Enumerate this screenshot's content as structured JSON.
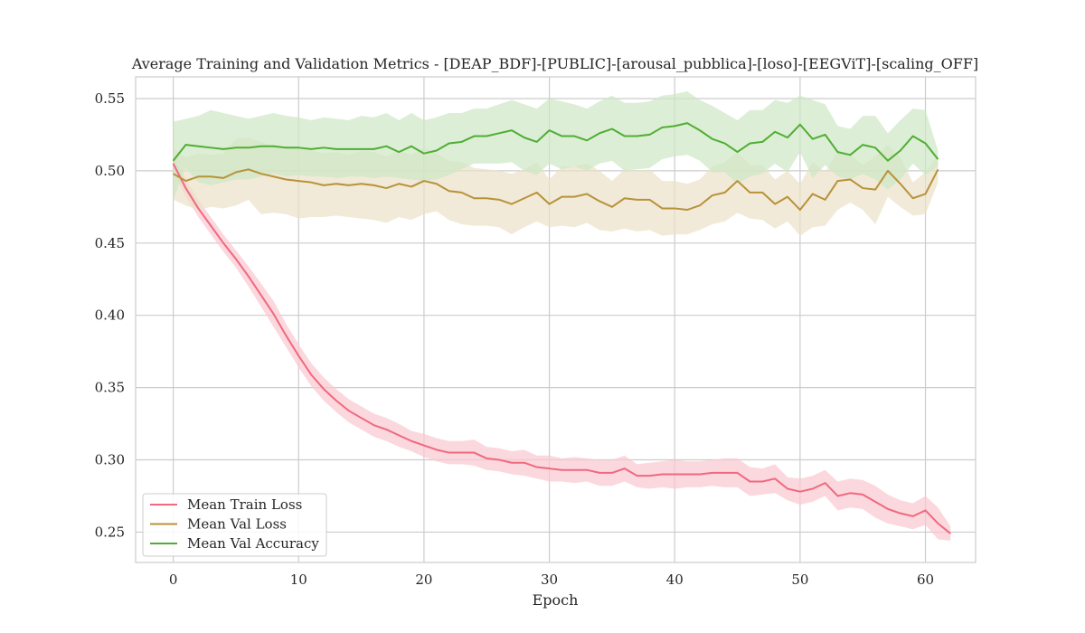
{
  "chart_data": {
    "type": "line",
    "title": "Average Training and Validation Metrics - [DEAP_BDF]-[PUBLIC]-[arousal_pubblica]-[loso]-[EEGViT]-[scaling_OFF]",
    "xlabel": "Epoch",
    "ylabel": "",
    "xlim": [
      -3,
      64
    ],
    "ylim": [
      0.229,
      0.565
    ],
    "xticks": [
      0,
      10,
      20,
      30,
      40,
      50,
      60
    ],
    "yticks": [
      0.25,
      0.3,
      0.35,
      0.4,
      0.45,
      0.5,
      0.55
    ],
    "xtick_labels": [
      "0",
      "10",
      "20",
      "30",
      "40",
      "50",
      "60"
    ],
    "ytick_labels": [
      "0.25",
      "0.30",
      "0.35",
      "0.40",
      "0.45",
      "0.50",
      "0.55"
    ],
    "grid": true,
    "legend_position": "lower-left",
    "series": [
      {
        "name": "Mean Train Loss",
        "color": "#f0697f",
        "band_color": "#f9c8d0",
        "values": [
          0.505,
          0.488,
          0.474,
          0.462,
          0.45,
          0.439,
          0.427,
          0.414,
          0.401,
          0.386,
          0.372,
          0.359,
          0.349,
          0.341,
          0.334,
          0.329,
          0.324,
          0.321,
          0.317,
          0.313,
          0.31,
          0.307,
          0.305,
          0.305,
          0.305,
          0.301,
          0.3,
          0.298,
          0.298,
          0.295,
          0.294,
          0.293,
          0.293,
          0.293,
          0.291,
          0.291,
          0.294,
          0.289,
          0.289,
          0.29,
          0.29,
          0.29,
          0.29,
          0.291,
          0.291,
          0.291,
          0.285,
          0.285,
          0.287,
          0.28,
          0.278,
          0.28,
          0.284,
          0.275,
          0.277,
          0.276,
          0.271,
          0.266,
          0.263,
          0.261,
          0.265,
          0.256,
          0.249
        ],
        "lower": [
          0.5,
          0.482,
          0.468,
          0.456,
          0.444,
          0.433,
          0.42,
          0.406,
          0.392,
          0.378,
          0.364,
          0.351,
          0.341,
          0.333,
          0.326,
          0.321,
          0.316,
          0.313,
          0.309,
          0.306,
          0.302,
          0.299,
          0.297,
          0.297,
          0.296,
          0.293,
          0.292,
          0.29,
          0.289,
          0.287,
          0.285,
          0.285,
          0.284,
          0.285,
          0.282,
          0.282,
          0.285,
          0.281,
          0.28,
          0.281,
          0.28,
          0.281,
          0.281,
          0.282,
          0.281,
          0.281,
          0.275,
          0.276,
          0.277,
          0.272,
          0.269,
          0.271,
          0.275,
          0.265,
          0.267,
          0.266,
          0.26,
          0.256,
          0.254,
          0.252,
          0.255,
          0.245,
          0.244
        ],
        "upper": [
          0.51,
          0.494,
          0.48,
          0.468,
          0.456,
          0.445,
          0.434,
          0.422,
          0.41,
          0.394,
          0.38,
          0.367,
          0.357,
          0.349,
          0.342,
          0.337,
          0.332,
          0.329,
          0.325,
          0.32,
          0.318,
          0.315,
          0.313,
          0.313,
          0.314,
          0.309,
          0.308,
          0.306,
          0.307,
          0.303,
          0.303,
          0.301,
          0.302,
          0.301,
          0.3,
          0.3,
          0.303,
          0.297,
          0.298,
          0.299,
          0.3,
          0.299,
          0.299,
          0.3,
          0.301,
          0.301,
          0.295,
          0.294,
          0.297,
          0.288,
          0.287,
          0.289,
          0.293,
          0.285,
          0.287,
          0.286,
          0.282,
          0.276,
          0.272,
          0.27,
          0.275,
          0.267,
          0.254
        ]
      },
      {
        "name": "Mean Val Loss",
        "color": "#b8923a",
        "band_color": "#ebe1c7",
        "values": [
          0.498,
          0.493,
          0.496,
          0.496,
          0.495,
          0.499,
          0.501,
          0.498,
          0.496,
          0.494,
          0.493,
          0.492,
          0.49,
          0.491,
          0.49,
          0.491,
          0.49,
          0.488,
          0.491,
          0.489,
          0.493,
          0.491,
          0.486,
          0.485,
          0.481,
          0.481,
          0.48,
          0.477,
          0.481,
          0.485,
          0.477,
          0.482,
          0.482,
          0.484,
          0.479,
          0.475,
          0.481,
          0.48,
          0.48,
          0.474,
          0.474,
          0.473,
          0.476,
          0.483,
          0.485,
          0.493,
          0.485,
          0.485,
          0.477,
          0.482,
          0.473,
          0.484,
          0.48,
          0.493,
          0.494,
          0.488,
          0.487,
          0.5,
          0.491,
          0.481,
          0.484,
          0.501
        ],
        "lower": [
          0.48,
          0.476,
          0.473,
          0.475,
          0.474,
          0.476,
          0.48,
          0.47,
          0.471,
          0.47,
          0.467,
          0.468,
          0.468,
          0.469,
          0.468,
          0.467,
          0.466,
          0.464,
          0.468,
          0.466,
          0.47,
          0.472,
          0.466,
          0.463,
          0.462,
          0.462,
          0.461,
          0.456,
          0.461,
          0.465,
          0.461,
          0.462,
          0.461,
          0.464,
          0.459,
          0.458,
          0.46,
          0.458,
          0.459,
          0.455,
          0.456,
          0.456,
          0.459,
          0.463,
          0.465,
          0.471,
          0.467,
          0.466,
          0.46,
          0.465,
          0.455,
          0.461,
          0.462,
          0.473,
          0.478,
          0.473,
          0.463,
          0.482,
          0.475,
          0.469,
          0.47,
          0.492
        ],
        "upper": [
          0.516,
          0.509,
          0.512,
          0.511,
          0.512,
          0.522,
          0.523,
          0.52,
          0.517,
          0.516,
          0.515,
          0.514,
          0.512,
          0.513,
          0.511,
          0.514,
          0.513,
          0.51,
          0.514,
          0.511,
          0.516,
          0.512,
          0.507,
          0.506,
          0.502,
          0.501,
          0.5,
          0.498,
          0.501,
          0.506,
          0.494,
          0.503,
          0.503,
          0.505,
          0.5,
          0.493,
          0.501,
          0.5,
          0.501,
          0.493,
          0.493,
          0.491,
          0.494,
          0.503,
          0.506,
          0.513,
          0.504,
          0.504,
          0.494,
          0.5,
          0.491,
          0.506,
          0.499,
          0.514,
          0.511,
          0.504,
          0.51,
          0.518,
          0.509,
          0.492,
          0.499,
          0.511
        ]
      },
      {
        "name": "Mean Val Accuracy",
        "color": "#4fae32",
        "band_color": "#cde7c4",
        "values": [
          0.507,
          0.518,
          0.517,
          0.516,
          0.515,
          0.516,
          0.516,
          0.517,
          0.517,
          0.516,
          0.516,
          0.515,
          0.516,
          0.515,
          0.515,
          0.515,
          0.515,
          0.517,
          0.513,
          0.517,
          0.512,
          0.514,
          0.519,
          0.52,
          0.524,
          0.524,
          0.526,
          0.528,
          0.523,
          0.52,
          0.528,
          0.524,
          0.524,
          0.521,
          0.526,
          0.529,
          0.524,
          0.524,
          0.525,
          0.53,
          0.531,
          0.533,
          0.528,
          0.522,
          0.519,
          0.513,
          0.519,
          0.52,
          0.527,
          0.523,
          0.532,
          0.522,
          0.525,
          0.513,
          0.511,
          0.518,
          0.516,
          0.507,
          0.514,
          0.524,
          0.519,
          0.508
        ],
        "lower": [
          0.48,
          0.502,
          0.492,
          0.49,
          0.492,
          0.494,
          0.494,
          0.496,
          0.498,
          0.496,
          0.497,
          0.496,
          0.496,
          0.495,
          0.496,
          0.496,
          0.495,
          0.496,
          0.495,
          0.494,
          0.493,
          0.494,
          0.497,
          0.501,
          0.505,
          0.505,
          0.505,
          0.506,
          0.5,
          0.497,
          0.505,
          0.501,
          0.503,
          0.5,
          0.505,
          0.507,
          0.5,
          0.501,
          0.502,
          0.508,
          0.51,
          0.511,
          0.507,
          0.499,
          0.499,
          0.491,
          0.496,
          0.498,
          0.505,
          0.499,
          0.513,
          0.495,
          0.504,
          0.496,
          0.494,
          0.498,
          0.494,
          0.487,
          0.494,
          0.505,
          0.497,
          0.503
        ],
        "upper": [
          0.534,
          0.536,
          0.538,
          0.542,
          0.54,
          0.538,
          0.536,
          0.538,
          0.54,
          0.538,
          0.537,
          0.535,
          0.537,
          0.536,
          0.535,
          0.538,
          0.537,
          0.54,
          0.535,
          0.54,
          0.535,
          0.537,
          0.54,
          0.54,
          0.543,
          0.543,
          0.546,
          0.549,
          0.546,
          0.543,
          0.55,
          0.548,
          0.546,
          0.543,
          0.548,
          0.552,
          0.547,
          0.547,
          0.548,
          0.552,
          0.553,
          0.555,
          0.549,
          0.545,
          0.54,
          0.535,
          0.542,
          0.542,
          0.549,
          0.547,
          0.552,
          0.549,
          0.546,
          0.531,
          0.529,
          0.538,
          0.538,
          0.526,
          0.535,
          0.543,
          0.542,
          0.514
        ]
      }
    ]
  }
}
